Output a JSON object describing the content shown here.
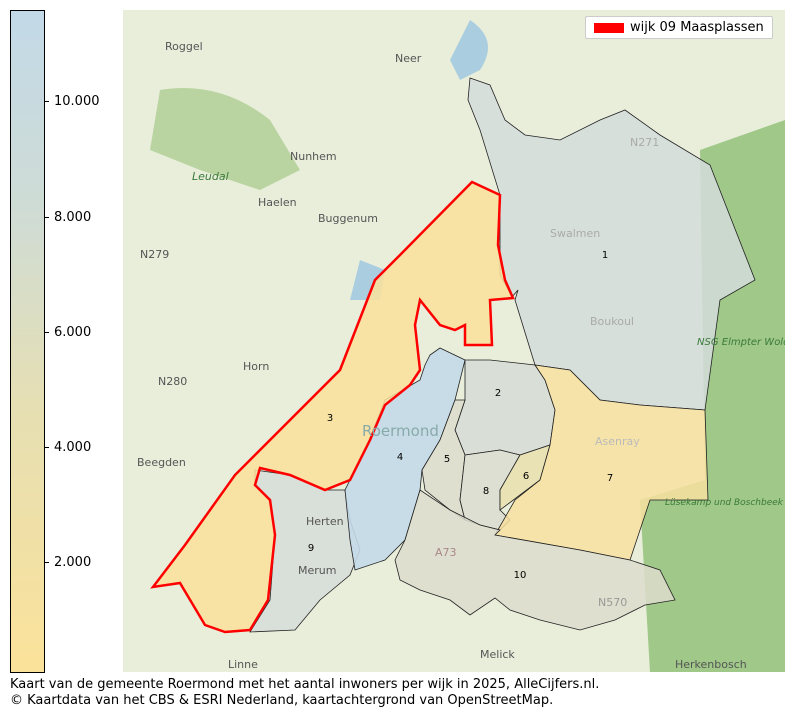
{
  "colorbar": {
    "ticks": [
      {
        "label": "10.000",
        "value": 10000
      },
      {
        "label": "8.000",
        "value": 8000
      },
      {
        "label": "6.000",
        "value": 6000
      },
      {
        "label": "4.000",
        "value": 4000
      },
      {
        "label": "2.000",
        "value": 2000
      }
    ],
    "colors": [
      "#fbe29a",
      "#c3d9e8"
    ]
  },
  "legend": {
    "label": "wijk 09 Maasplassen",
    "color": "#ff0000"
  },
  "districts": [
    {
      "id": "1"
    },
    {
      "id": "2"
    },
    {
      "id": "3"
    },
    {
      "id": "4"
    },
    {
      "id": "5"
    },
    {
      "id": "6"
    },
    {
      "id": "7"
    },
    {
      "id": "8"
    },
    {
      "id": "9"
    },
    {
      "id": "10"
    }
  ],
  "places": [
    "Roggel",
    "Neer",
    "Nunhem",
    "Leudal",
    "Haelen",
    "Buggenum",
    "N279",
    "Horn",
    "N280",
    "Beegden",
    "Roermond",
    "Herten",
    "Merum",
    "Swalmen",
    "Boukoul",
    "N271",
    "NSG Elmpter Wold",
    "Asenray",
    "Lüsekamp und Boschbeek",
    "A73",
    "N570",
    "Melick",
    "Herkenbosch",
    "Linne"
  ],
  "footer": {
    "line1": "Kaart van de gemeente Roermond met het aantal inwoners per wijk in 2025, AlleCijfers.nl.",
    "line2": "© Kaartdata van het CBS & ESRI Nederland, kaartachtergrond van OpenStreetMap."
  }
}
